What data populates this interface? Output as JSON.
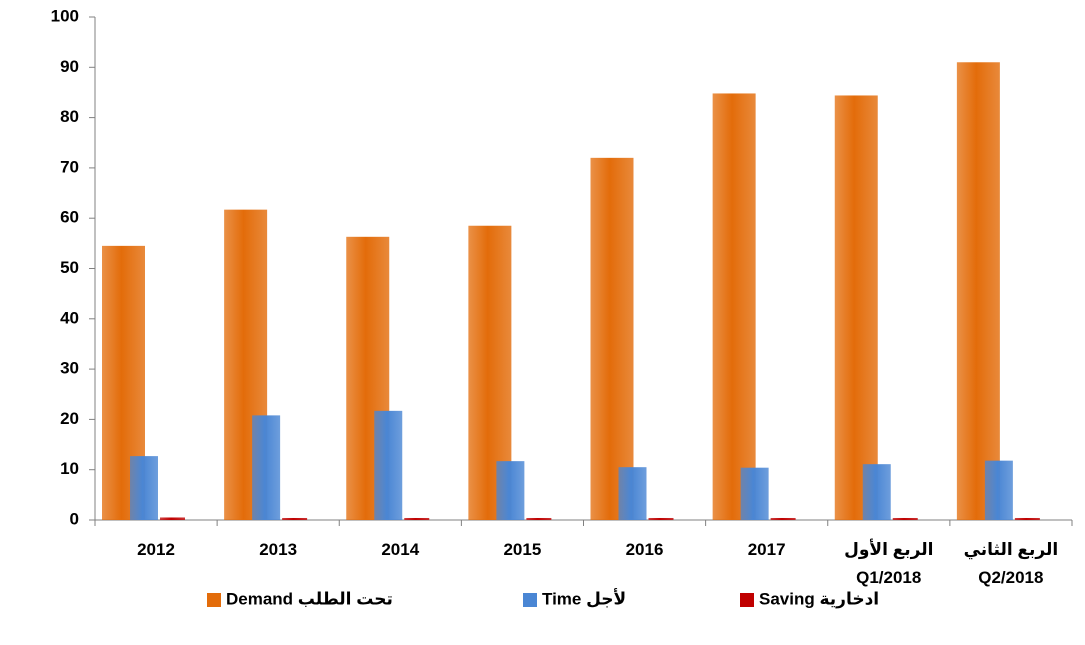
{
  "chart_data": {
    "type": "bar",
    "categories": [
      "2012",
      "2013",
      "2014",
      "2015",
      "2016",
      "2017",
      "الربع الأول\nQ1/2018",
      "الربع الثاني\nQ2/2018"
    ],
    "series": [
      {
        "name": "تحت الطلب  Demand",
        "color": "#e36c0a",
        "values": [
          54.5,
          61.7,
          56.3,
          58.5,
          72,
          84.8,
          84.4,
          91
        ]
      },
      {
        "name": "لأجل  Time",
        "color": "#4a86d4",
        "values": [
          12.7,
          20.8,
          21.7,
          11.7,
          10.5,
          10.4,
          11.1,
          11.8
        ]
      },
      {
        "name": "ادخارية Saving",
        "color": "#c00000",
        "values": [
          0.5,
          0.4,
          0.4,
          0.4,
          0.4,
          0.4,
          0.4,
          0.4
        ]
      }
    ],
    "ylim": [
      0,
      100
    ],
    "yticks": [
      0,
      10,
      20,
      30,
      40,
      50,
      60,
      70,
      80,
      90,
      100
    ],
    "grid": false,
    "legend": "bottom"
  }
}
